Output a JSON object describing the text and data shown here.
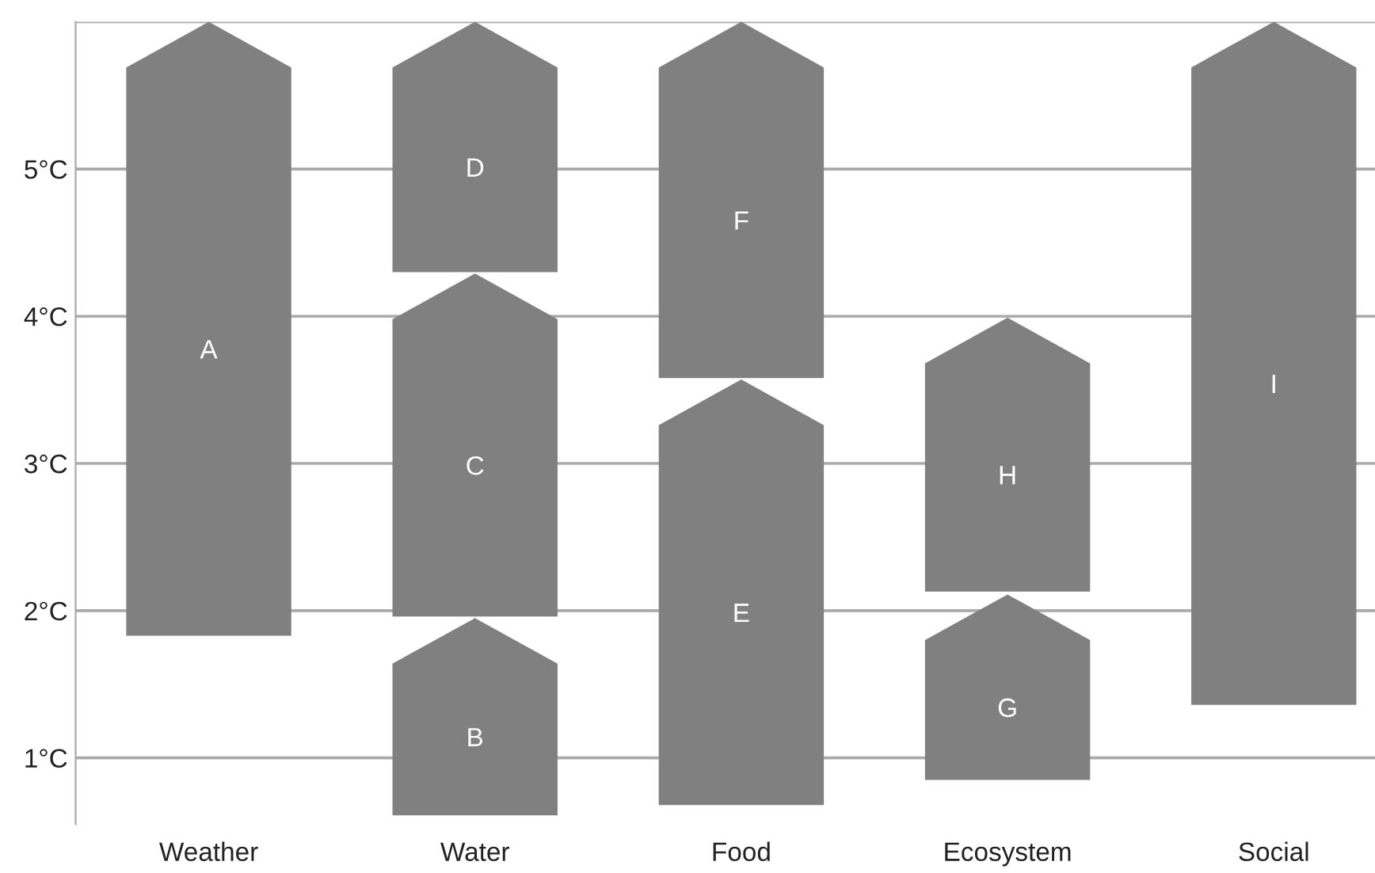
{
  "chart_data": {
    "type": "bar",
    "categories": [
      "Weather",
      "Water",
      "Food",
      "Ecosystem",
      "Social"
    ],
    "series": [
      {
        "color": "#808080",
        "base": [
          1.83,
          0.61,
          0.68,
          0.85,
          1.36
        ],
        "values": [
          4.17,
          1.34,
          2.89,
          1.26,
          4.64
        ]
      },
      {
        "color": "#808080",
        "base": [
          null,
          1.96,
          3.58,
          2.13,
          null
        ],
        "values": [
          null,
          2.33,
          2.42,
          1.86,
          null
        ]
      },
      {
        "color": "#808080",
        "base": [
          null,
          4.3,
          null,
          null,
          null
        ],
        "values": [
          null,
          1.7,
          null,
          null,
          null
        ]
      }
    ],
    "ylim": [
      0.55,
      6.0
    ],
    "yticks": [
      {
        "value": 1,
        "label": "1°C"
      },
      {
        "value": 2,
        "label": "2°C"
      },
      {
        "value": 3,
        "label": "3°C"
      },
      {
        "value": 4,
        "label": "4°C"
      },
      {
        "value": 5,
        "label": "5°C"
      },
      {
        "value": 6,
        "label": null
      }
    ],
    "grid": "y",
    "annotations": [
      "A",
      "B",
      "C",
      "D",
      "E",
      "F",
      "G",
      "H",
      "I"
    ]
  }
}
